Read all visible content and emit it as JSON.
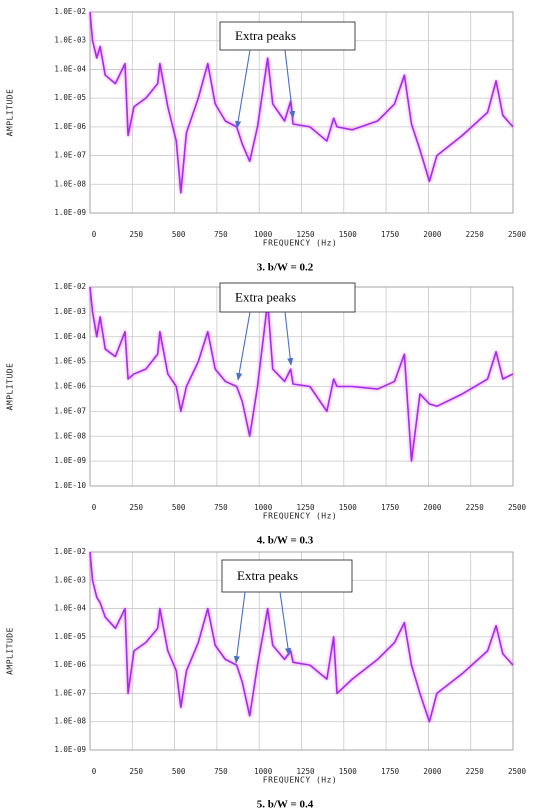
{
  "chart_data": [
    {
      "type": "line",
      "title": "3. b/W = 0.2",
      "x_label": "FREQUENCY (Hz)",
      "y_label": "AMPLITUDE",
      "annotation": "Extra peaks",
      "yscale": "log",
      "grid": true,
      "xlim": [
        0,
        2500
      ],
      "xticks": [
        0,
        250,
        500,
        750,
        1000,
        1250,
        1500,
        1750,
        2000,
        2250,
        2500
      ],
      "ylim": [
        1e-09,
        0.01
      ],
      "yticks": [
        {
          "value": 1e-09,
          "label": "1.0E-09"
        },
        {
          "value": 1e-08,
          "label": "1.0E-08"
        },
        {
          "value": 1e-07,
          "label": "1.0E-07"
        },
        {
          "value": 1e-06,
          "label": "1.0E-06"
        },
        {
          "value": 1e-05,
          "label": "1.0E-05"
        },
        {
          "value": 0.0001,
          "label": "1.0E-04"
        },
        {
          "value": 0.001,
          "label": "1.0E-03"
        },
        {
          "value": 0.01,
          "label": "1.0E-02"
        }
      ],
      "x": [
        0,
        15,
        40,
        60,
        90,
        150,
        207,
        225,
        260,
        330,
        400,
        413,
        460,
        510,
        537,
        570,
        640,
        696,
        740,
        800,
        867,
        900,
        944,
        990,
        1050,
        1080,
        1150,
        1186,
        1200,
        1300,
        1400,
        1440,
        1460,
        1550,
        1700,
        1800,
        1858,
        1900,
        1950,
        2006,
        2050,
        2200,
        2350,
        2400,
        2440,
        2500
      ],
      "series": [
        {
          "color": "#a030e8",
          "values": [
            0.01,
            0.001,
            0.00025,
            0.00063,
            6.3e-05,
            3.2e-05,
            0.00016,
            5e-07,
            5e-06,
            1e-05,
            3.2e-05,
            0.00016,
            5e-06,
            3.2e-07,
            5e-09,
            6.3e-07,
            1e-05,
            0.00016,
            6.3e-06,
            1.6e-06,
            1e-06,
            2.5e-07,
            6.3e-08,
            1e-06,
            0.00025,
            6.3e-06,
            1.6e-06,
            7.9e-06,
            1.26e-06,
            1e-06,
            3.2e-07,
            2e-06,
            1e-06,
            7.9e-07,
            1.6e-06,
            6.3e-06,
            6.3e-05,
            1.26e-06,
            1.6e-07,
            1.26e-08,
            1e-07,
            5e-07,
            3.2e-06,
            4e-05,
            2.5e-06,
            1e-06
          ]
        }
      ]
    },
    {
      "type": "line",
      "title": "4. b/W = 0.3",
      "x_label": "FREQUENCY (Hz)",
      "y_label": "AMPLITUDE",
      "annotation": "Extra peaks",
      "yscale": "log",
      "grid": true,
      "xlim": [
        0,
        2500
      ],
      "xticks": [
        0,
        250,
        500,
        750,
        1000,
        1250,
        1500,
        1750,
        2000,
        2250,
        2500
      ],
      "ylim": [
        1e-10,
        0.01
      ],
      "yticks": [
        {
          "value": 1e-10,
          "label": "1.0E-10"
        },
        {
          "value": 1e-09,
          "label": "1.0E-09"
        },
        {
          "value": 1e-08,
          "label": "1.0E-08"
        },
        {
          "value": 1e-07,
          "label": "1.0E-07"
        },
        {
          "value": 1e-06,
          "label": "1.0E-06"
        },
        {
          "value": 1e-05,
          "label": "1.0E-05"
        },
        {
          "value": 0.0001,
          "label": "1.0E-04"
        },
        {
          "value": 0.001,
          "label": "1.0E-03"
        },
        {
          "value": 0.01,
          "label": "1.0E-02"
        }
      ],
      "x": [
        0,
        15,
        40,
        60,
        90,
        150,
        207,
        225,
        260,
        330,
        400,
        413,
        460,
        510,
        537,
        570,
        640,
        696,
        740,
        800,
        867,
        900,
        944,
        990,
        1050,
        1080,
        1150,
        1186,
        1200,
        1300,
        1400,
        1440,
        1460,
        1550,
        1700,
        1800,
        1858,
        1900,
        1950,
        2006,
        2050,
        2200,
        2350,
        2400,
        2440,
        2500
      ],
      "series": [
        {
          "color": "#a030e8",
          "values": [
            0.01,
            0.001,
            0.0001,
            0.00063,
            3.2e-05,
            1.6e-05,
            0.00016,
            2e-06,
            3.2e-06,
            5e-06,
            2e-05,
            0.00016,
            3.2e-06,
            1e-06,
            1e-07,
            1e-06,
            1e-05,
            0.00016,
            5e-06,
            1.6e-06,
            1e-06,
            2.5e-07,
            1e-08,
            1e-06,
            0.0025,
            5e-06,
            1.6e-06,
            5e-06,
            1.26e-06,
            1e-06,
            1e-07,
            2e-06,
            1e-06,
            1e-06,
            7.9e-07,
            1.6e-06,
            2e-05,
            1e-09,
            5e-07,
            2e-07,
            1.6e-07,
            5e-07,
            2e-06,
            2.5e-05,
            2e-06,
            3.2e-06
          ]
        }
      ]
    },
    {
      "type": "line",
      "title": "5. b/W = 0.4",
      "x_label": "FREQUENCY (Hz)",
      "y_label": "AMPLITUDE",
      "annotation": "Extra peaks",
      "yscale": "log",
      "grid": true,
      "xlim": [
        0,
        2500
      ],
      "xticks": [
        0,
        250,
        500,
        750,
        1000,
        1250,
        1500,
        1750,
        2000,
        2250,
        2500
      ],
      "ylim": [
        1e-09,
        0.01
      ],
      "yticks": [
        {
          "value": 1e-09,
          "label": "1.0E-09"
        },
        {
          "value": 1e-08,
          "label": "1.0E-08"
        },
        {
          "value": 1e-07,
          "label": "1.0E-07"
        },
        {
          "value": 1e-06,
          "label": "1.0E-06"
        },
        {
          "value": 1e-05,
          "label": "1.0E-05"
        },
        {
          "value": 0.0001,
          "label": "1.0E-04"
        },
        {
          "value": 0.001,
          "label": "1.0E-03"
        },
        {
          "value": 0.01,
          "label": "1.0E-02"
        }
      ],
      "x": [
        0,
        15,
        40,
        60,
        90,
        150,
        207,
        225,
        260,
        330,
        400,
        413,
        460,
        510,
        537,
        570,
        640,
        696,
        740,
        800,
        867,
        900,
        944,
        990,
        1050,
        1080,
        1150,
        1186,
        1200,
        1300,
        1400,
        1440,
        1460,
        1550,
        1700,
        1800,
        1858,
        1900,
        1950,
        2006,
        2050,
        2200,
        2350,
        2400,
        2440,
        2500
      ],
      "series": [
        {
          "color": "#a030e8",
          "values": [
            0.01,
            0.001,
            0.00025,
            0.00016,
            5e-05,
            2e-05,
            0.0001,
            1e-07,
            3.2e-06,
            6.3e-06,
            2e-05,
            0.0001,
            3.2e-06,
            6.3e-07,
            3.2e-08,
            6.3e-07,
            6.3e-06,
            0.0001,
            5e-06,
            1.6e-06,
            1e-06,
            2.5e-07,
            1.6e-08,
            1e-06,
            0.0001,
            5e-06,
            1.6e-06,
            3.2e-06,
            1.26e-06,
            1e-06,
            3.2e-07,
            1e-05,
            1e-07,
            3.2e-07,
            1.6e-06,
            6.3e-06,
            3.2e-05,
            1e-06,
            1e-07,
            1e-08,
            1e-07,
            5e-07,
            3.2e-06,
            2.5e-05,
            2.5e-06,
            1e-06
          ]
        }
      ]
    }
  ]
}
